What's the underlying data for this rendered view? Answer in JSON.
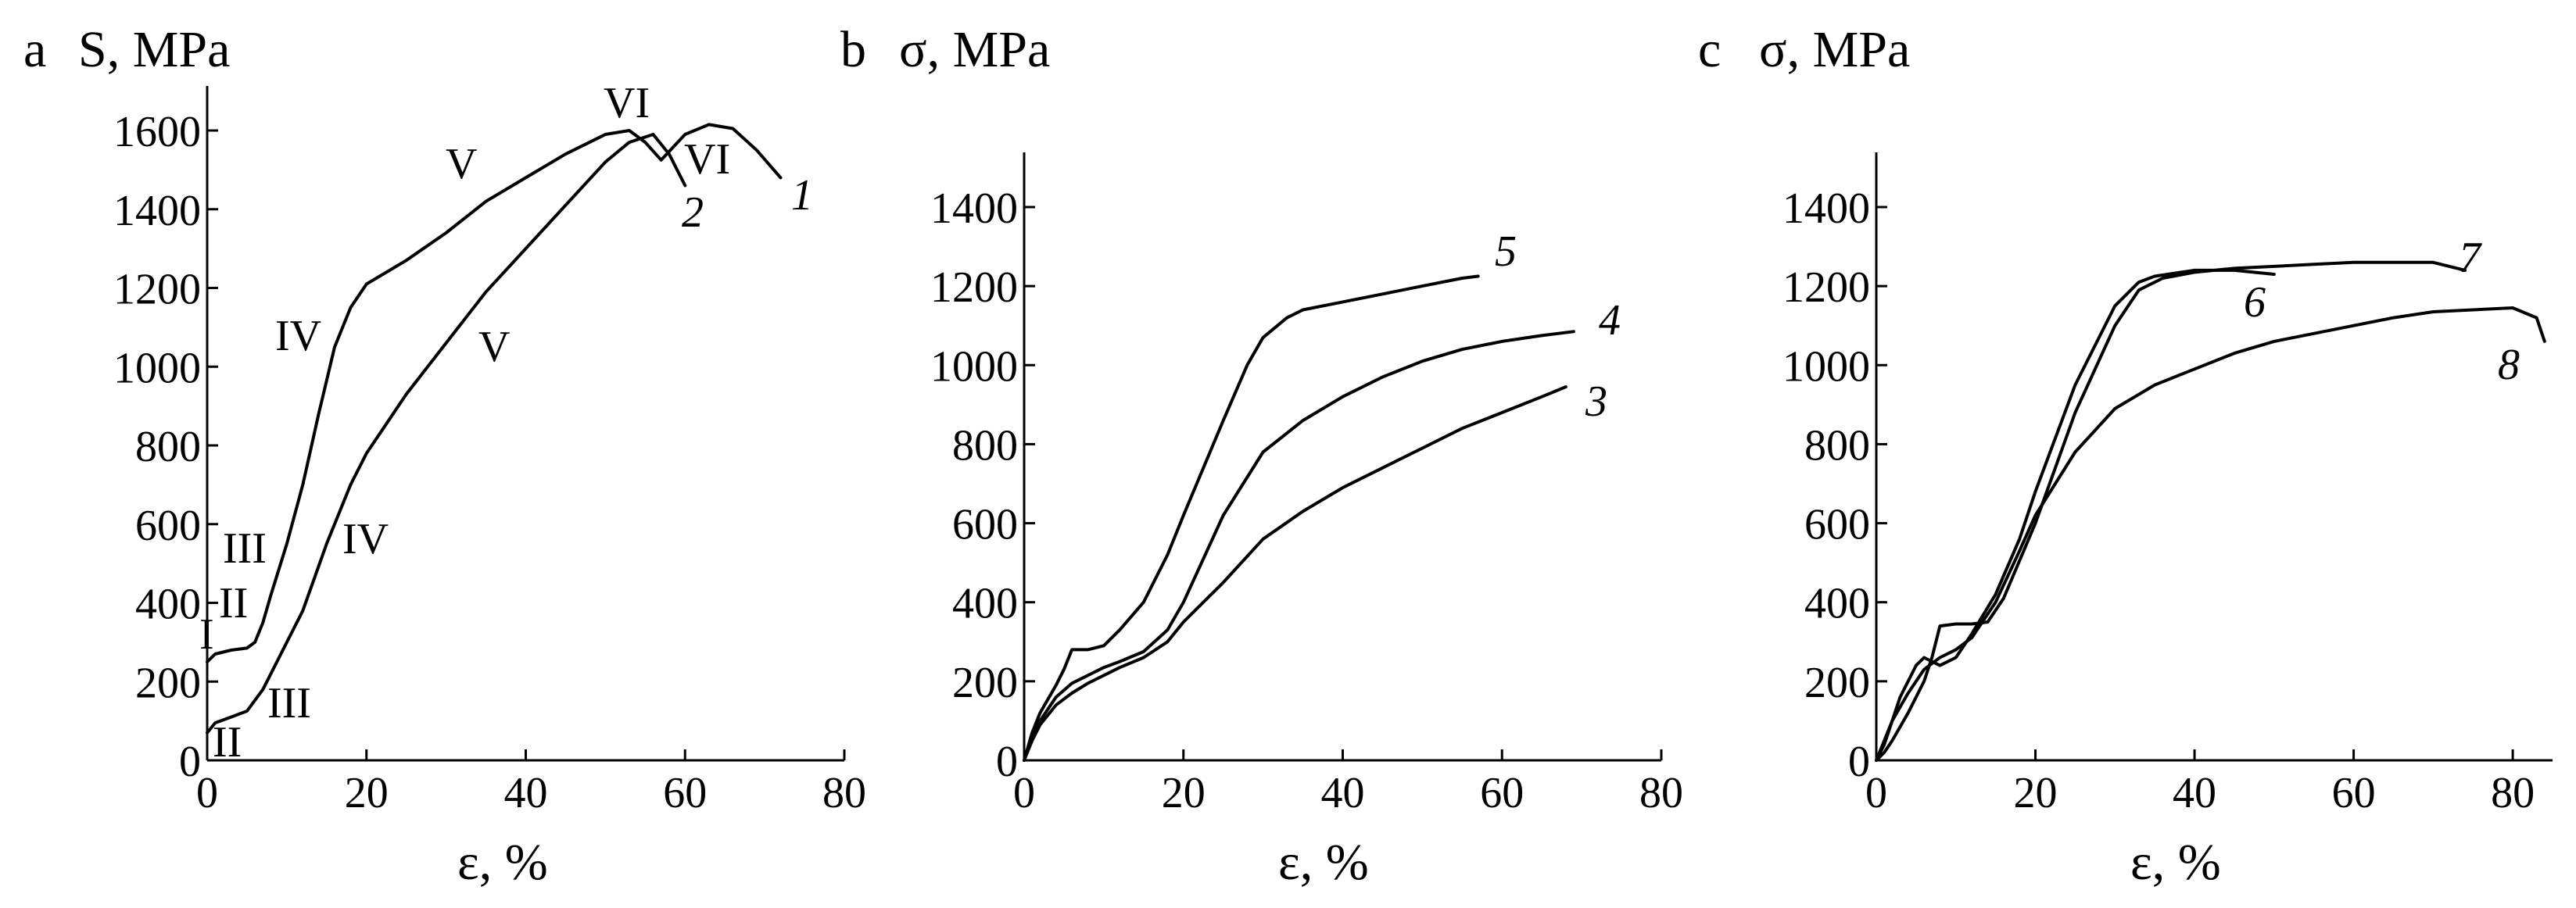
{
  "chart_data": [
    {
      "type": "line",
      "panel": "a",
      "ylabel": "S, MPa",
      "xlabel": "ε, %",
      "xlim": [
        0,
        80
      ],
      "ylim": [
        0,
        1700
      ],
      "xticks": [
        0,
        20,
        40,
        60,
        80
      ],
      "yticks": [
        0,
        200,
        400,
        600,
        800,
        1000,
        1200,
        1400,
        1600
      ],
      "series": [
        {
          "name": "1",
          "x": [
            0,
            1,
            3,
            5,
            6,
            7,
            8,
            10,
            12,
            14,
            16,
            18,
            20,
            25,
            30,
            35,
            40,
            45,
            50,
            53,
            55,
            57,
            60,
            63,
            66,
            69,
            72
          ],
          "y": [
            250,
            270,
            280,
            285,
            300,
            350,
            420,
            550,
            700,
            880,
            1050,
            1150,
            1210,
            1270,
            1340,
            1420,
            1480,
            1540,
            1590,
            1600,
            1570,
            1525,
            1590,
            1615,
            1605,
            1550,
            1480
          ]
        },
        {
          "name": "2",
          "x": [
            0,
            1,
            3,
            5,
            7,
            9,
            12,
            15,
            18,
            20,
            25,
            30,
            35,
            40,
            45,
            50,
            53,
            56,
            58,
            60
          ],
          "y": [
            70,
            95,
            110,
            125,
            180,
            260,
            380,
            550,
            700,
            780,
            930,
            1060,
            1190,
            1300,
            1410,
            1520,
            1570,
            1590,
            1540,
            1460
          ]
        }
      ],
      "curve_labels": [
        "1",
        "2"
      ],
      "stage_labels": [
        "I",
        "II",
        "III",
        "IV",
        "V",
        "VI",
        "II",
        "III",
        "IV",
        "V",
        "VI"
      ]
    },
    {
      "type": "line",
      "panel": "b",
      "ylabel": "σ, MPa",
      "xlabel": "ε, %",
      "xlim": [
        0,
        80
      ],
      "ylim": [
        0,
        1550
      ],
      "xticks": [
        0,
        20,
        40,
        60,
        80
      ],
      "yticks": [
        0,
        200,
        400,
        600,
        800,
        1000,
        1200,
        1400
      ],
      "series": [
        {
          "name": "3",
          "x": [
            0,
            1,
            2,
            4,
            6,
            8,
            10,
            12,
            15,
            18,
            20,
            25,
            30,
            35,
            40,
            45,
            50,
            55,
            60,
            65,
            68
          ],
          "y": [
            0,
            50,
            90,
            140,
            170,
            195,
            215,
            235,
            260,
            300,
            350,
            450,
            560,
            630,
            690,
            740,
            790,
            840,
            880,
            920,
            945
          ]
        },
        {
          "name": "4",
          "x": [
            0,
            1,
            2,
            4,
            6,
            8,
            10,
            12,
            15,
            18,
            20,
            25,
            30,
            35,
            40,
            45,
            50,
            55,
            60,
            65,
            69
          ],
          "y": [
            0,
            60,
            100,
            160,
            195,
            215,
            235,
            250,
            275,
            330,
            400,
            620,
            780,
            860,
            920,
            970,
            1010,
            1040,
            1060,
            1075,
            1085
          ]
        },
        {
          "name": "5",
          "x": [
            0,
            1,
            2,
            4,
            5,
            6,
            8,
            10,
            12,
            15,
            18,
            20,
            25,
            28,
            30,
            33,
            35,
            40,
            45,
            50,
            55,
            57
          ],
          "y": [
            0,
            70,
            120,
            190,
            230,
            280,
            280,
            290,
            330,
            400,
            520,
            620,
            860,
            1000,
            1070,
            1120,
            1140,
            1160,
            1180,
            1200,
            1220,
            1225
          ]
        }
      ],
      "curve_labels": [
        "3",
        "4",
        "5"
      ]
    },
    {
      "type": "line",
      "panel": "c",
      "ylabel": "σ, MPa",
      "xlabel": "ε, %",
      "xlim": [
        0,
        85
      ],
      "ylim": [
        0,
        1550
      ],
      "xticks": [
        0,
        20,
        40,
        60,
        80
      ],
      "yticks": [
        0,
        200,
        400,
        600,
        800,
        1000,
        1200,
        1400
      ],
      "series": [
        {
          "name": "6",
          "x": [
            0,
            1,
            2,
            3,
            5,
            6,
            7,
            8,
            10,
            12,
            15,
            18,
            20,
            25,
            30,
            33,
            35,
            40,
            45,
            50
          ],
          "y": [
            0,
            40,
            100,
            160,
            240,
            260,
            250,
            240,
            260,
            320,
            420,
            560,
            680,
            950,
            1150,
            1210,
            1225,
            1240,
            1240,
            1230
          ]
        },
        {
          "name": "7",
          "x": [
            0,
            1,
            2,
            4,
            6,
            7,
            8,
            10,
            12,
            14,
            16,
            20,
            25,
            30,
            33,
            36,
            40,
            45,
            50,
            55,
            60,
            65,
            70,
            74
          ],
          "y": [
            0,
            20,
            50,
            120,
            200,
            260,
            340,
            345,
            345,
            350,
            410,
            600,
            880,
            1100,
            1190,
            1220,
            1235,
            1245,
            1250,
            1255,
            1260,
            1260,
            1260,
            1240
          ]
        },
        {
          "name": "8",
          "x": [
            0,
            1,
            2,
            4,
            6,
            8,
            10,
            12,
            15,
            18,
            20,
            25,
            30,
            35,
            40,
            45,
            50,
            55,
            60,
            65,
            70,
            75,
            80,
            83,
            84
          ],
          "y": [
            0,
            50,
            100,
            170,
            230,
            260,
            280,
            310,
            400,
            530,
            620,
            780,
            890,
            950,
            990,
            1030,
            1060,
            1080,
            1100,
            1120,
            1135,
            1140,
            1145,
            1120,
            1060
          ]
        }
      ],
      "curve_labels": [
        "6",
        "7",
        "8"
      ]
    }
  ],
  "figure": {
    "panels": [
      {
        "letter": "a",
        "ylabel": "S, MPa",
        "xlabel": "ε, %"
      },
      {
        "letter": "b",
        "ylabel": "σ, MPa",
        "xlabel": "ε, %"
      },
      {
        "letter": "c",
        "ylabel": "σ, MPa",
        "xlabel": "ε, %"
      }
    ]
  }
}
